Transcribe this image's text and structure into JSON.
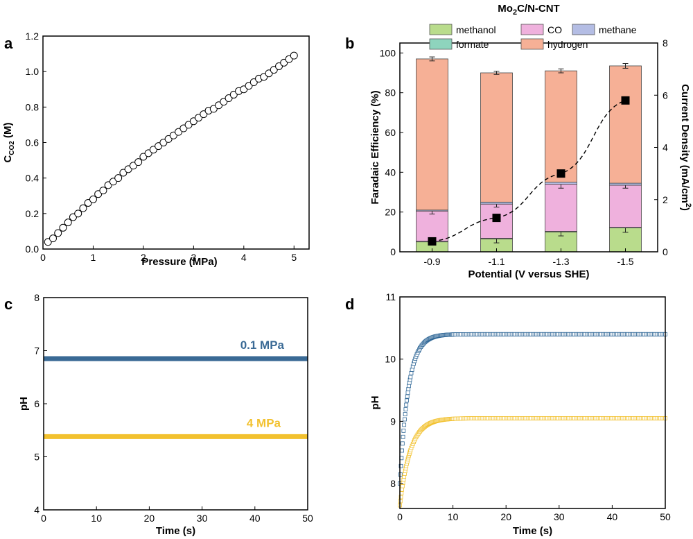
{
  "colors": {
    "methanol": "#b9dc8c",
    "formate": "#8ed4bd",
    "CO": "#efb1dd",
    "methane": "#b4bde4",
    "hydrogen": "#f6b096",
    "blue_series": "#2e6696",
    "yellow_series": "#f2c12e",
    "line_ph_01": "#3a6a95",
    "line_ph_4": "#f2c12e"
  },
  "panels": {
    "a": "a",
    "b": "b",
    "c": "c",
    "d": "d"
  },
  "chart_data": [
    {
      "panel": "a",
      "type": "scatter",
      "xlabel": "Pressure (MPa)",
      "ylabel_main": "C",
      "ylabel_sub": "CO2",
      "ylabel_unit": " (M)",
      "xlim": [
        0,
        5.3
      ],
      "ylim": [
        0,
        1.2
      ],
      "xticks": [
        0,
        1,
        2,
        3,
        4,
        5
      ],
      "yticks": [
        0.0,
        0.2,
        0.4,
        0.6,
        0.8,
        1.0,
        1.2
      ],
      "marker": "open-circle",
      "x": [
        0.1,
        0.2,
        0.3,
        0.4,
        0.5,
        0.6,
        0.7,
        0.8,
        0.9,
        1.0,
        1.1,
        1.2,
        1.3,
        1.4,
        1.5,
        1.6,
        1.7,
        1.8,
        1.9,
        2.0,
        2.1,
        2.2,
        2.3,
        2.4,
        2.5,
        2.6,
        2.7,
        2.8,
        2.9,
        3.0,
        3.1,
        3.2,
        3.3,
        3.4,
        3.5,
        3.6,
        3.7,
        3.8,
        3.9,
        4.0,
        4.1,
        4.2,
        4.3,
        4.4,
        4.5,
        4.6,
        4.7,
        4.8,
        4.9,
        5.0
      ],
      "y": [
        0.04,
        0.06,
        0.09,
        0.12,
        0.15,
        0.18,
        0.2,
        0.23,
        0.26,
        0.28,
        0.31,
        0.33,
        0.36,
        0.38,
        0.4,
        0.43,
        0.45,
        0.47,
        0.49,
        0.52,
        0.54,
        0.56,
        0.58,
        0.6,
        0.62,
        0.64,
        0.66,
        0.68,
        0.7,
        0.72,
        0.74,
        0.76,
        0.78,
        0.79,
        0.81,
        0.83,
        0.85,
        0.87,
        0.89,
        0.9,
        0.92,
        0.94,
        0.96,
        0.97,
        0.99,
        1.01,
        1.03,
        1.05,
        1.07,
        1.09
      ]
    },
    {
      "panel": "b",
      "type": "bar",
      "title": "Mo2C/N-CNT",
      "title_main": "Mo",
      "title_sub": "2",
      "title_rest": "C/N-CNT",
      "xlabel": "Potential (V versus SHE)",
      "ylabel": "Faradaic Efficiency (%)",
      "y2label_main": "Current Density (mA/cm",
      "y2label_sup": "2",
      "y2label_end": ")",
      "categories": [
        "-0.9",
        "-1.1",
        "-1.3",
        "-1.5"
      ],
      "ylim": [
        0,
        105
      ],
      "yticks": [
        0,
        20,
        40,
        60,
        80,
        100
      ],
      "y2lim": [
        0,
        8
      ],
      "y2ticks": [
        0,
        2,
        4,
        6,
        8
      ],
      "series": [
        {
          "name": "methanol",
          "values": [
            5,
            6.5,
            10,
            12
          ],
          "err": [
            0,
            2,
            2,
            2.2
          ]
        },
        {
          "name": "formate",
          "values": [
            0.3,
            0.3,
            0.3,
            0.3
          ],
          "err": [
            0,
            0,
            0,
            0
          ]
        },
        {
          "name": "CO",
          "values": [
            15.2,
            17.2,
            23.7,
            21.2
          ],
          "err": [
            1.5,
            1.5,
            2,
            1.5
          ]
        },
        {
          "name": "methane",
          "values": [
            0.5,
            1.0,
            1.0,
            1.0
          ],
          "err": [
            0,
            0,
            0,
            0
          ]
        },
        {
          "name": "hydrogen",
          "values": [
            76,
            65,
            56,
            59
          ],
          "err": [
            1,
            0.8,
            1,
            1.2
          ]
        }
      ],
      "current_density": [
        0.4,
        1.3,
        3.0,
        5.8
      ],
      "legend": [
        "methanol",
        "CO",
        "methane",
        "formate",
        "hydrogen"
      ],
      "legend_placement": "top"
    },
    {
      "panel": "c",
      "type": "line",
      "xlabel": "Time (s)",
      "ylabel": "pH",
      "xlim": [
        0,
        50
      ],
      "ylim": [
        4,
        8
      ],
      "xticks": [
        0,
        10,
        20,
        30,
        40,
        50
      ],
      "yticks": [
        4,
        5,
        6,
        7,
        8
      ],
      "series": [
        {
          "name": "0.1 MPa",
          "x": [
            0,
            50
          ],
          "values": [
            6.85,
            6.85
          ]
        },
        {
          "name": "4 MPa",
          "x": [
            0,
            50
          ],
          "values": [
            5.38,
            5.38
          ]
        }
      ]
    },
    {
      "panel": "d",
      "type": "scatter",
      "xlabel": "Time (s)",
      "ylabel": "pH",
      "xlim": [
        0,
        50
      ],
      "ylim": [
        7.6,
        11
      ],
      "xticks": [
        0,
        10,
        20,
        30,
        40,
        50
      ],
      "yticks": [
        8,
        9,
        10,
        11
      ],
      "marker": "open-square",
      "series": [
        {
          "name": "",
          "start": 8.0,
          "plateau": 10.4,
          "tau": 1.6
        },
        {
          "name": "",
          "start": 7.65,
          "plateau": 9.05,
          "tau": 2.0
        }
      ]
    }
  ]
}
